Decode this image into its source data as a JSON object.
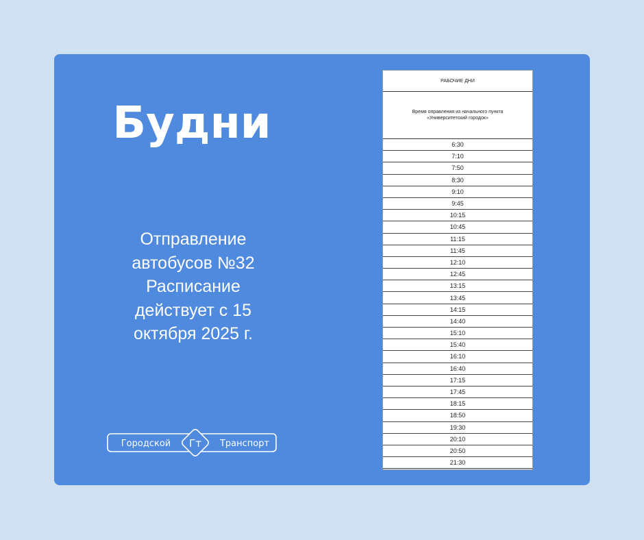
{
  "colors": {
    "background": "#cfe0f0",
    "card": "#4f8ade",
    "text": "#ffffff"
  },
  "title": "Будни",
  "description": [
    "Отправление",
    "автобусов №32",
    "Расписание",
    "действует с 15",
    "октября 2025 г."
  ],
  "logo": {
    "left_text": "Городской",
    "mark": "Гт",
    "right_text": "Транспорт"
  },
  "schedule": {
    "header": "РАБОЧИЕ ДНИ",
    "subheader_line1": "Время оправления из начального пункта",
    "subheader_line2": "«Университетский городок»",
    "times": [
      "6:30",
      "7:10",
      "7:50",
      "8:30",
      "9:10",
      "9:45",
      "10:15",
      "10:45",
      "11:15",
      "11:45",
      "12:10",
      "12:45",
      "13:15",
      "13:45",
      "14:15",
      "14:40",
      "15:10",
      "15:40",
      "16:10",
      "16:40",
      "17:15",
      "17:45",
      "18:15",
      "18:50",
      "19:30",
      "20:10",
      "20:50",
      "21:30"
    ]
  }
}
